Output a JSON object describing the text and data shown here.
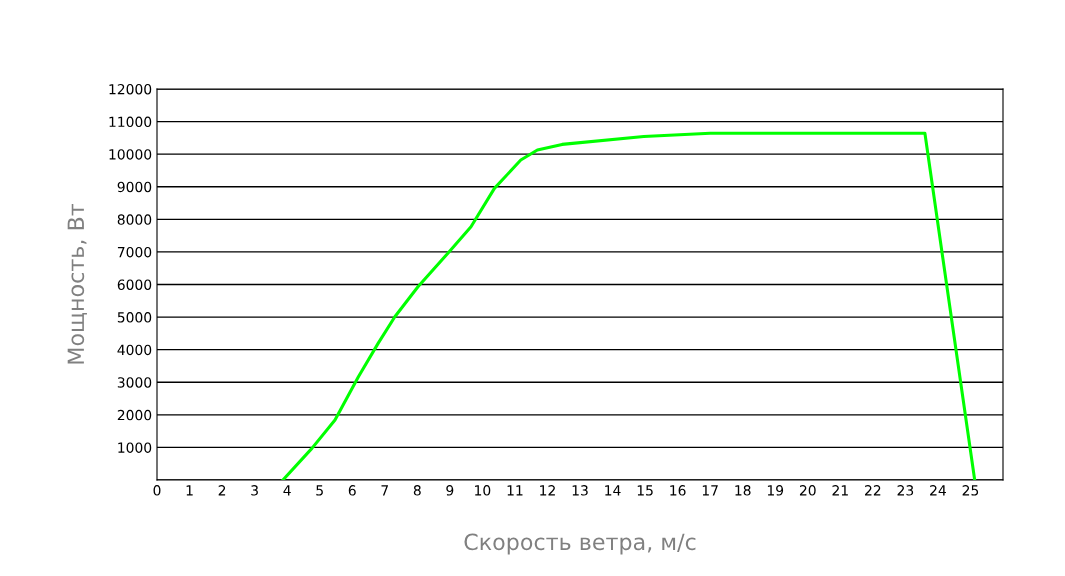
{
  "chart_data": {
    "type": "line",
    "xlabel": "Скорость ветра, м/с",
    "ylabel": "Мощность, Вт",
    "x": [
      3.87,
      4.76,
      5.47,
      6.19,
      6.8,
      7.31,
      8.02,
      8.94,
      9.65,
      10.37,
      11.18,
      11.69,
      12.45,
      14.96,
      17.0,
      23.6,
      25.13
    ],
    "series": [
      {
        "color": "#00ff00",
        "values": [
          0,
          970,
          1840,
          3170,
          4200,
          5010,
          5930,
          6960,
          7770,
          8950,
          9820,
          10130,
          10300,
          10540,
          10640,
          10640,
          0
        ]
      }
    ],
    "xlim": [
      0,
      26
    ],
    "xticks": [
      0,
      1,
      2,
      3,
      4,
      5,
      6,
      7,
      8,
      9,
      10,
      11,
      12,
      13,
      14,
      15,
      16,
      17,
      18,
      19,
      20,
      21,
      22,
      23,
      24,
      25
    ],
    "ylim": [
      0,
      12000
    ],
    "yticks": [
      {
        "value": 0,
        "label": null
      },
      1000,
      2000,
      3000,
      4000,
      5000,
      6000,
      7000,
      8000,
      9000,
      10000,
      11000,
      12000
    ],
    "grid": "y",
    "marker": "none",
    "line_style": "solid"
  }
}
